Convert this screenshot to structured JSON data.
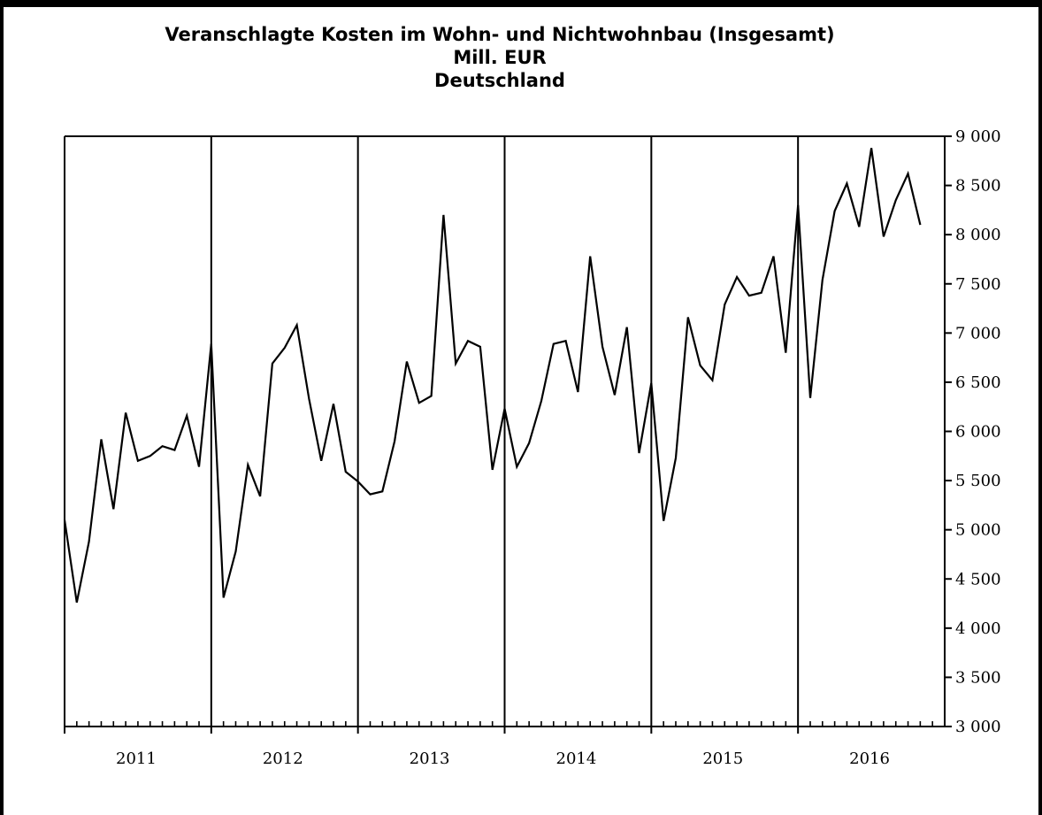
{
  "chart_data": {
    "type": "line",
    "title": "Veranschlagte Kosten im Wohn- und Nichtwohnbau (Insgesamt)",
    "subtitle": "Mill. EUR",
    "region": "Deutschland",
    "xlabel": "",
    "ylabel": "",
    "ylim": [
      3000,
      9000
    ],
    "y_ticks": [
      3000,
      3500,
      4000,
      4500,
      5000,
      5500,
      6000,
      6500,
      7000,
      7500,
      8000,
      8500,
      9000
    ],
    "y_tick_labels": [
      "3 000",
      "3 500",
      "4 000",
      "4 500",
      "5 000",
      "5 500",
      "6 000",
      "6 500",
      "7 000",
      "7 500",
      "8 000",
      "8 500",
      "9 000"
    ],
    "y_axis_position": "right",
    "years": [
      "2011",
      "2012",
      "2013",
      "2014",
      "2015",
      "2016"
    ],
    "months_per_year": 12,
    "grid": "vertical year separators",
    "legend": "none",
    "line_color": "#000000",
    "series": [
      {
        "values": [
          5100,
          4260,
          4880,
          5920,
          5210,
          6190,
          5700,
          5750,
          5850,
          5810,
          6160,
          5640,
          6890,
          4310,
          4780,
          5660,
          5340,
          6690,
          6850,
          7080,
          6330,
          5700,
          6280,
          5590,
          5490,
          5360,
          5390,
          5900,
          6710,
          6290,
          6360,
          8200,
          6690,
          6920,
          6860,
          5610,
          6230,
          5640,
          5880,
          6310,
          6890,
          6920,
          6400,
          7780,
          6860,
          6370,
          7060,
          5780,
          6490,
          5090,
          5730,
          7160,
          6670,
          6520,
          7290,
          7570,
          7380,
          7410,
          7780,
          6800,
          8300,
          6340,
          7540,
          8240,
          8520,
          8080,
          8880,
          7980,
          8350,
          8620,
          8100
        ]
      }
    ]
  }
}
